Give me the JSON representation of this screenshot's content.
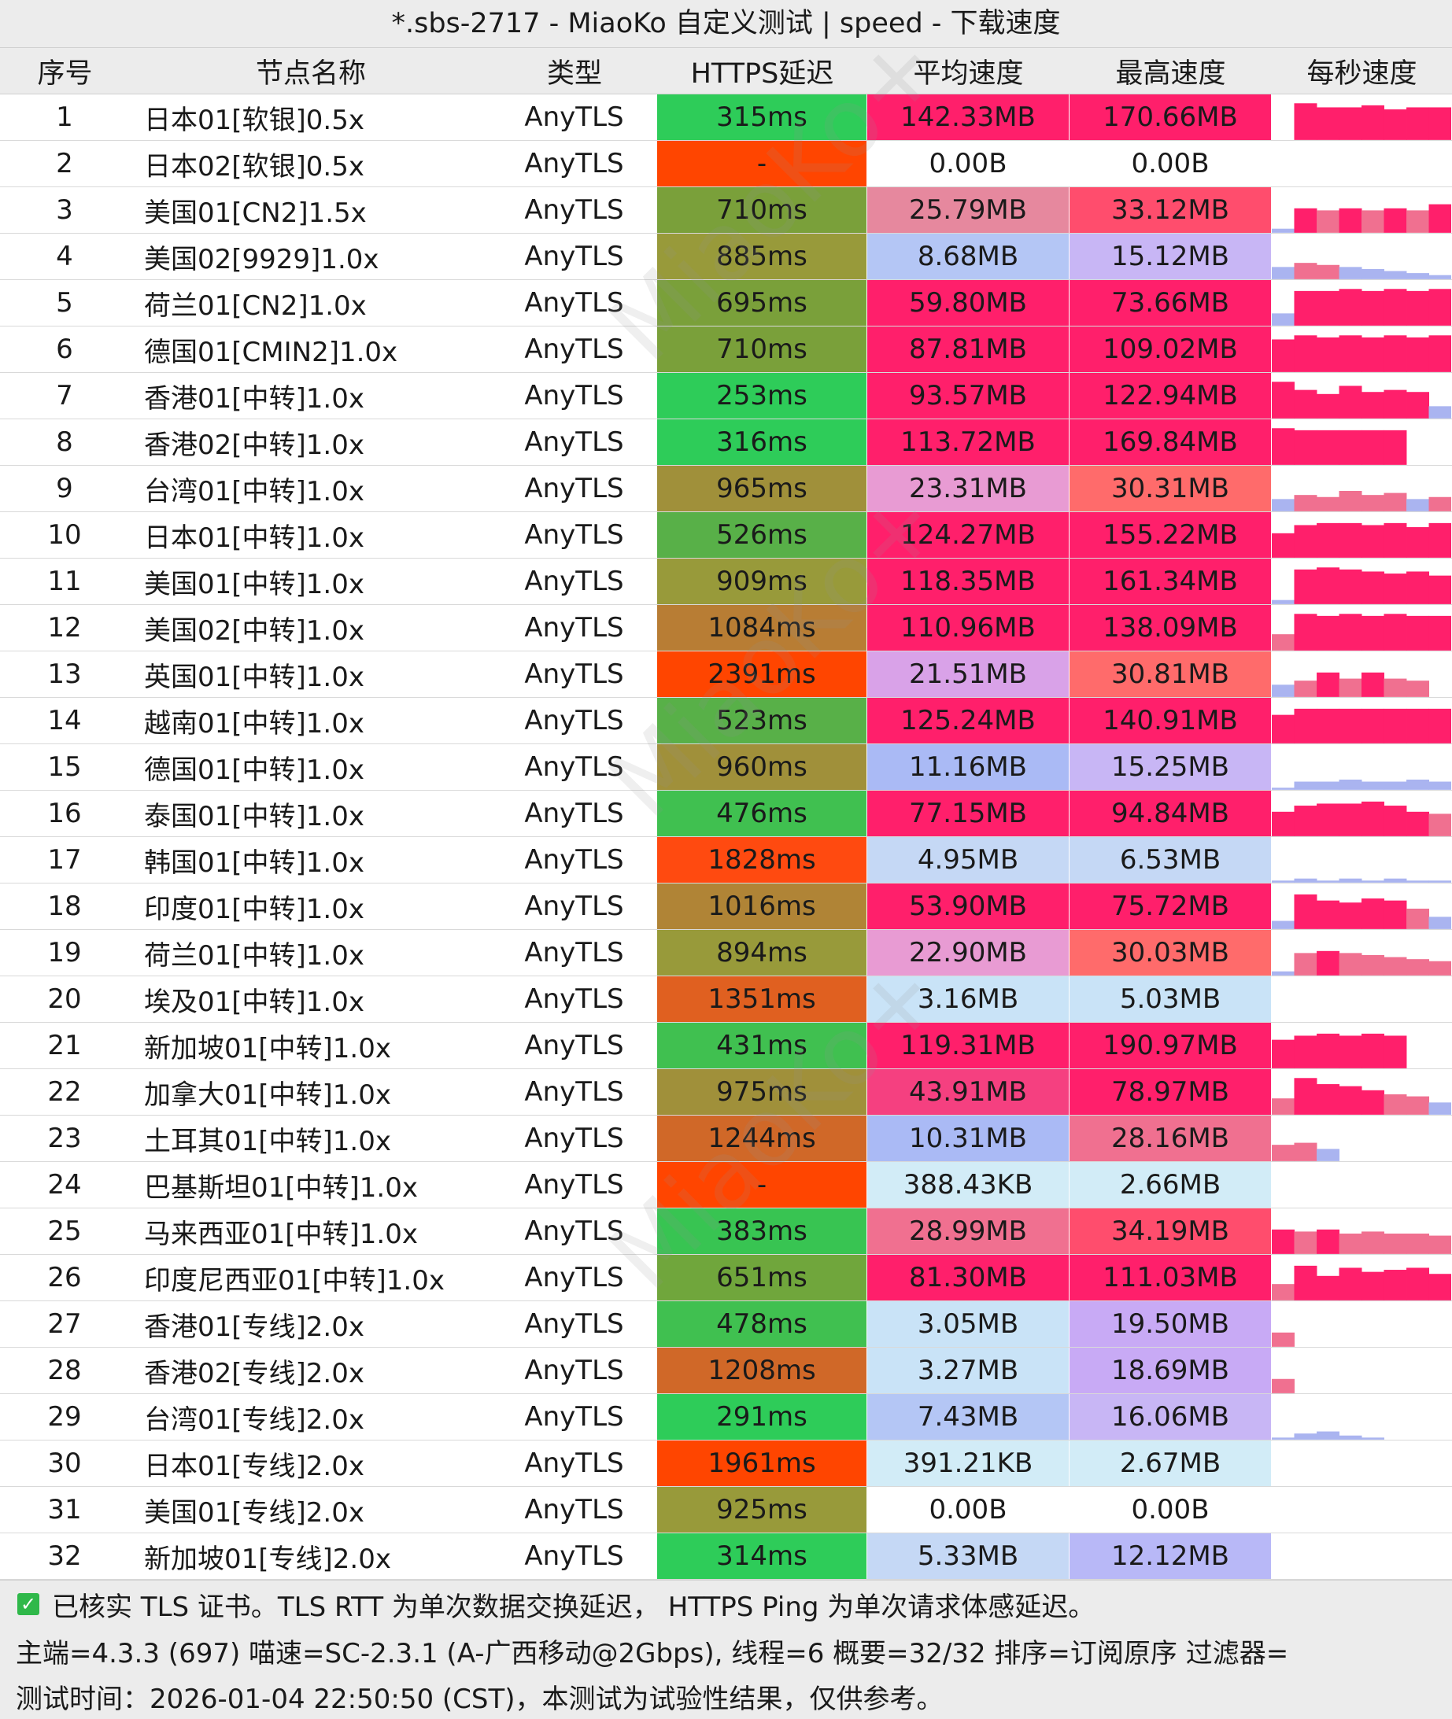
{
  "window": {
    "title": "*.sbs-2717 - MiaoKo 自定义测试 | speed - 下载速度"
  },
  "table": {
    "headers": [
      "序号",
      "节点名称",
      "类型",
      "HTTPS延迟",
      "平均速度",
      "最高速度",
      "每秒速度"
    ],
    "rows": [
      {
        "idx": "1",
        "name": "日本01[软银]0.5x",
        "type": "AnyTLS",
        "latency": "315ms",
        "avg": "142.33MB",
        "max": "170.66MB",
        "lat_color": "#2ecc59",
        "avg_color": "#ff1f6b",
        "max_color": "#ff1f6b",
        "spark": [
          0,
          0.9,
          0.8,
          0.8,
          0.85,
          0.75,
          0.8,
          0.8
        ]
      },
      {
        "idx": "2",
        "name": "日本02[软银]0.5x",
        "type": "AnyTLS",
        "latency": "-",
        "avg": "0.00B",
        "max": "0.00B",
        "lat_color": "#ff4500",
        "avg_color": "#ffffff",
        "max_color": "#ffffff",
        "spark": []
      },
      {
        "idx": "3",
        "name": "美国01[CN2]1.5x",
        "type": "AnyTLS",
        "latency": "710ms",
        "avg": "25.79MB",
        "max": "33.12MB",
        "lat_color": "#7aa03a",
        "avg_color": "#e6889e",
        "max_color": "#ff4d6d",
        "spark": [
          0.1,
          0.6,
          0.55,
          0.6,
          0.55,
          0.6,
          0.55,
          0.7
        ]
      },
      {
        "idx": "4",
        "name": "美国02[9929]1.0x",
        "type": "AnyTLS",
        "latency": "885ms",
        "avg": "8.68MB",
        "max": "15.12MB",
        "lat_color": "#989a3a",
        "avg_color": "#b4c6f5",
        "max_color": "#c8b6f5",
        "spark": [
          0.3,
          0.4,
          0.35,
          0.3,
          0.25,
          0.2,
          0.15,
          0.1
        ]
      },
      {
        "idx": "5",
        "name": "荷兰01[CN2]1.0x",
        "type": "AnyTLS",
        "latency": "695ms",
        "avg": "59.80MB",
        "max": "73.66MB",
        "lat_color": "#7aa03a",
        "avg_color": "#ff1f6b",
        "max_color": "#ff1f6b",
        "spark": [
          0.3,
          0.85,
          0.85,
          0.9,
          0.85,
          0.9,
          0.85,
          0.9
        ]
      },
      {
        "idx": "6",
        "name": "德国01[CMIN2]1.0x",
        "type": "AnyTLS",
        "latency": "710ms",
        "avg": "87.81MB",
        "max": "109.02MB",
        "lat_color": "#7aa03a",
        "avg_color": "#ff1f6b",
        "max_color": "#ff1f6b",
        "spark": [
          0.8,
          0.9,
          0.85,
          0.9,
          0.85,
          0.9,
          0.85,
          0.9
        ]
      },
      {
        "idx": "7",
        "name": "香港01[中转]1.0x",
        "type": "AnyTLS",
        "latency": "253ms",
        "avg": "93.57MB",
        "max": "122.94MB",
        "lat_color": "#2ecc59",
        "avg_color": "#ff1f6b",
        "max_color": "#ff1f6b",
        "spark": [
          0.9,
          0.7,
          0.6,
          0.8,
          0.65,
          0.7,
          0.65,
          0.3
        ]
      },
      {
        "idx": "8",
        "name": "香港02[中转]1.0x",
        "type": "AnyTLS",
        "latency": "316ms",
        "avg": "113.72MB",
        "max": "169.84MB",
        "lat_color": "#2ecc59",
        "avg_color": "#ff1f6b",
        "max_color": "#ff1f6b",
        "spark": [
          0.9,
          0.85,
          0.85,
          0.85,
          0.85,
          0.85,
          0.0,
          0.0
        ]
      },
      {
        "idx": "9",
        "name": "台湾01[中转]1.0x",
        "type": "AnyTLS",
        "latency": "965ms",
        "avg": "23.31MB",
        "max": "30.31MB",
        "lat_color": "#a0903a",
        "avg_color": "#e89bd3",
        "max_color": "#ff6b6b",
        "spark": [
          0.3,
          0.4,
          0.35,
          0.5,
          0.4,
          0.45,
          0.3,
          0.35
        ]
      },
      {
        "idx": "10",
        "name": "日本01[中转]1.0x",
        "type": "AnyTLS",
        "latency": "526ms",
        "avg": "124.27MB",
        "max": "155.22MB",
        "lat_color": "#58b048",
        "avg_color": "#ff1f6b",
        "max_color": "#ff1f6b",
        "spark": [
          0.6,
          0.8,
          0.85,
          0.85,
          0.8,
          0.85,
          0.75,
          0.85
        ]
      },
      {
        "idx": "11",
        "name": "美国01[中转]1.0x",
        "type": "AnyTLS",
        "latency": "909ms",
        "avg": "118.35MB",
        "max": "161.34MB",
        "lat_color": "#989a3a",
        "avg_color": "#ff1f6b",
        "max_color": "#ff1f6b",
        "spark": [
          0.1,
          0.85,
          0.9,
          0.85,
          0.8,
          0.75,
          0.8,
          0.7
        ]
      },
      {
        "idx": "12",
        "name": "美国02[中转]1.0x",
        "type": "AnyTLS",
        "latency": "1084ms",
        "avg": "110.96MB",
        "max": "138.09MB",
        "lat_color": "#b87d34",
        "avg_color": "#ff1f6b",
        "max_color": "#ff1f6b",
        "spark": [
          0.4,
          0.9,
          0.85,
          0.9,
          0.85,
          0.9,
          0.85,
          0.85
        ]
      },
      {
        "idx": "13",
        "name": "英国01[中转]1.0x",
        "type": "AnyTLS",
        "latency": "2391ms",
        "avg": "21.51MB",
        "max": "30.81MB",
        "lat_color": "#ff4500",
        "avg_color": "#d9a2e8",
        "max_color": "#ff6b6b",
        "spark": [
          0.3,
          0.4,
          0.6,
          0.45,
          0.6,
          0.45,
          0.4,
          0.0
        ]
      },
      {
        "idx": "14",
        "name": "越南01[中转]1.0x",
        "type": "AnyTLS",
        "latency": "523ms",
        "avg": "125.24MB",
        "max": "140.91MB",
        "lat_color": "#58b048",
        "avg_color": "#ff1f6b",
        "max_color": "#ff1f6b",
        "spark": [
          0.7,
          0.85,
          0.85,
          0.85,
          0.85,
          0.85,
          0.85,
          0.85
        ]
      },
      {
        "idx": "15",
        "name": "德国01[中转]1.0x",
        "type": "AnyTLS",
        "latency": "960ms",
        "avg": "11.16MB",
        "max": "15.25MB",
        "lat_color": "#a0903a",
        "avg_color": "#aabaf5",
        "max_color": "#c8b6f5",
        "spark": [
          0.05,
          0.2,
          0.2,
          0.25,
          0.2,
          0.2,
          0.25,
          0.2
        ]
      },
      {
        "idx": "16",
        "name": "泰国01[中转]1.0x",
        "type": "AnyTLS",
        "latency": "476ms",
        "avg": "77.15MB",
        "max": "94.84MB",
        "lat_color": "#40c050",
        "avg_color": "#ff1f6b",
        "max_color": "#ff1f6b",
        "spark": [
          0.6,
          0.75,
          0.8,
          0.8,
          0.85,
          0.75,
          0.6,
          0.55
        ]
      },
      {
        "idx": "17",
        "name": "韩国01[中转]1.0x",
        "type": "AnyTLS",
        "latency": "1828ms",
        "avg": "4.95MB",
        "max": "6.53MB",
        "lat_color": "#ff4a10",
        "avg_color": "#c5d8f5",
        "max_color": "#c5d8f5",
        "spark": [
          0.05,
          0.1,
          0.05,
          0.1,
          0.05,
          0.1,
          0.05,
          0.05
        ]
      },
      {
        "idx": "18",
        "name": "印度01[中转]1.0x",
        "type": "AnyTLS",
        "latency": "1016ms",
        "avg": "53.90MB",
        "max": "75.72MB",
        "lat_color": "#b08436",
        "avg_color": "#ff1f6b",
        "max_color": "#ff1f6b",
        "spark": [
          0.2,
          0.85,
          0.7,
          0.65,
          0.75,
          0.7,
          0.5,
          0.3
        ]
      },
      {
        "idx": "19",
        "name": "荷兰01[中转]1.0x",
        "type": "AnyTLS",
        "latency": "894ms",
        "avg": "22.90MB",
        "max": "30.03MB",
        "lat_color": "#989a3a",
        "avg_color": "#e89bd3",
        "max_color": "#ff6b6b",
        "spark": [
          0.1,
          0.55,
          0.6,
          0.55,
          0.5,
          0.45,
          0.4,
          0.35
        ]
      },
      {
        "idx": "20",
        "name": "埃及01[中转]1.0x",
        "type": "AnyTLS",
        "latency": "1351ms",
        "avg": "3.16MB",
        "max": "5.03MB",
        "lat_color": "#e06020",
        "avg_color": "#c9e3f7",
        "max_color": "#c9e3f7",
        "spark": []
      },
      {
        "idx": "21",
        "name": "新加坡01[中转]1.0x",
        "type": "AnyTLS",
        "latency": "431ms",
        "avg": "119.31MB",
        "max": "190.97MB",
        "lat_color": "#40c050",
        "avg_color": "#ff1f6b",
        "max_color": "#ff1f6b",
        "spark": [
          0.7,
          0.8,
          0.85,
          0.8,
          0.85,
          0.8,
          0.0,
          0.0
        ]
      },
      {
        "idx": "22",
        "name": "加拿大01[中转]1.0x",
        "type": "AnyTLS",
        "latency": "975ms",
        "avg": "43.91MB",
        "max": "78.97MB",
        "lat_color": "#a0903a",
        "avg_color": "#f54080",
        "max_color": "#ff1f6b",
        "spark": [
          0.4,
          0.9,
          0.75,
          0.7,
          0.6,
          0.5,
          0.45,
          0.3
        ]
      },
      {
        "idx": "23",
        "name": "土耳其01[中转]1.0x",
        "type": "AnyTLS",
        "latency": "1244ms",
        "avg": "10.31MB",
        "max": "28.16MB",
        "lat_color": "#d06828",
        "avg_color": "#aabaf5",
        "max_color": "#f07090",
        "spark": [
          0.4,
          0.45,
          0.3,
          0.0,
          0.0,
          0.0,
          0.0,
          0.0
        ]
      },
      {
        "idx": "24",
        "name": "巴基斯坦01[中转]1.0x",
        "type": "AnyTLS",
        "latency": "-",
        "avg": "388.43KB",
        "max": "2.66MB",
        "lat_color": "#ff4500",
        "avg_color": "#d2ecf7",
        "max_color": "#d2ecf7",
        "spark": []
      },
      {
        "idx": "25",
        "name": "马来西亚01[中转]1.0x",
        "type": "AnyTLS",
        "latency": "383ms",
        "avg": "28.99MB",
        "max": "34.19MB",
        "lat_color": "#38c452",
        "avg_color": "#f07090",
        "max_color": "#ff4d6d",
        "spark": [
          0.6,
          0.55,
          0.6,
          0.5,
          0.55,
          0.5,
          0.5,
          0.45
        ]
      },
      {
        "idx": "26",
        "name": "印度尼西亚01[中转]1.0x",
        "type": "AnyTLS",
        "latency": "651ms",
        "avg": "81.30MB",
        "max": "111.03MB",
        "lat_color": "#70a63c",
        "avg_color": "#ff1f6b",
        "max_color": "#ff1f6b",
        "spark": [
          0.4,
          0.85,
          0.6,
          0.8,
          0.7,
          0.75,
          0.8,
          0.65
        ]
      },
      {
        "idx": "27",
        "name": "香港01[专线]2.0x",
        "type": "AnyTLS",
        "latency": "478ms",
        "avg": "3.05MB",
        "max": "19.50MB",
        "lat_color": "#40c050",
        "avg_color": "#c9e3f7",
        "max_color": "#c8aaf5",
        "spark": [
          0.35,
          0.0,
          0.0,
          0.0,
          0.0,
          0.0,
          0.0,
          0.0
        ]
      },
      {
        "idx": "28",
        "name": "香港02[专线]2.0x",
        "type": "AnyTLS",
        "latency": "1208ms",
        "avg": "3.27MB",
        "max": "18.69MB",
        "lat_color": "#d06828",
        "avg_color": "#c9e3f7",
        "max_color": "#c8aaf5",
        "spark": [
          0.35,
          0.0,
          0.0,
          0.0,
          0.0,
          0.0,
          0.0,
          0.0
        ]
      },
      {
        "idx": "29",
        "name": "台湾01[专线]2.0x",
        "type": "AnyTLS",
        "latency": "291ms",
        "avg": "7.43MB",
        "max": "16.06MB",
        "lat_color": "#2ecc59",
        "avg_color": "#b4c6f5",
        "max_color": "#c8b6f5",
        "spark": [
          0.05,
          0.15,
          0.2,
          0.1,
          0.05,
          0.0,
          0.0,
          0.0
        ]
      },
      {
        "idx": "30",
        "name": "日本01[专线]2.0x",
        "type": "AnyTLS",
        "latency": "1961ms",
        "avg": "391.21KB",
        "max": "2.67MB",
        "lat_color": "#ff4500",
        "avg_color": "#d2ecf7",
        "max_color": "#d2ecf7",
        "spark": []
      },
      {
        "idx": "31",
        "name": "美国01[专线]2.0x",
        "type": "AnyTLS",
        "latency": "925ms",
        "avg": "0.00B",
        "max": "0.00B",
        "lat_color": "#989a3a",
        "avg_color": "#ffffff",
        "max_color": "#ffffff",
        "spark": []
      },
      {
        "idx": "32",
        "name": "新加坡01[专线]2.0x",
        "type": "AnyTLS",
        "latency": "314ms",
        "avg": "5.33MB",
        "max": "12.12MB",
        "lat_color": "#2ecc59",
        "avg_color": "#c5d8f5",
        "max_color": "#b8b8f7",
        "spark": []
      }
    ]
  },
  "footer": {
    "line1": "已核实 TLS 证书。TLS RTT 为单次数据交换延迟， HTTPS Ping 为单次请求体感延迟。",
    "line2": "主端=4.3.3 (697) 喵速=SC-2.3.1 (A-广西移动@2Gbps), 线程=6 概要=32/32 排序=订阅原序 过滤器=",
    "line3": "测试时间：2026-01-04 22:50:50 (CST)，本测试为试验性结果，仅供参考。"
  },
  "colors": {
    "spark_hot": "#ff1f6b",
    "spark_mid": "#f07090",
    "spark_cool": "#aab4f0"
  }
}
